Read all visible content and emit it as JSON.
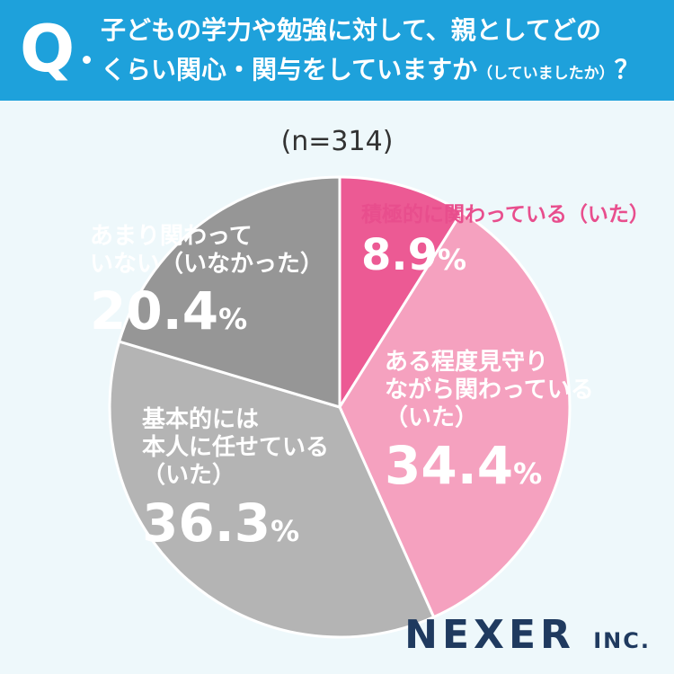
{
  "header": {
    "q_mark": "Q",
    "question_line1": "子どもの学力や勉強に対して、親としてどの",
    "question_line2": "くらい関心・関与をしていますか",
    "question_paren": "（していましたか）",
    "question_end": "？"
  },
  "sample_size": "(n=314)",
  "chart_data": {
    "type": "pie",
    "title": "",
    "labels": [
      "積極的に関わっている（いた）",
      "ある程度見守りながら関わっている（いた）",
      "基本的には本人に任せている（いた）",
      "あまり関わっていない（いなかった）"
    ],
    "values": [
      8.9,
      34.4,
      36.3,
      20.4
    ],
    "unit": "%",
    "colors": [
      "#ec5a94",
      "#f5a1bf",
      "#b4b4b4",
      "#969696"
    ],
    "start_angle_deg": 0,
    "direction": "clockwise"
  },
  "labels": {
    "s0": {
      "line1": "積極的に関わっている（いた）",
      "value": "8.9",
      "pct": "%"
    },
    "s1": {
      "line1": "ある程度見守り",
      "line2": "ながら関わっている",
      "line3": "（いた）",
      "value": "34.4",
      "pct": "%"
    },
    "s2": {
      "line1": "基本的には",
      "line2": "本人に任せている",
      "line3": "（いた）",
      "value": "36.3",
      "pct": "%"
    },
    "s3": {
      "line1": "あまり関わって",
      "line2": "いない（いなかった）",
      "value": "20.4",
      "pct": "%"
    }
  },
  "logo": {
    "name": "NEXER",
    "suffix": "INC."
  }
}
